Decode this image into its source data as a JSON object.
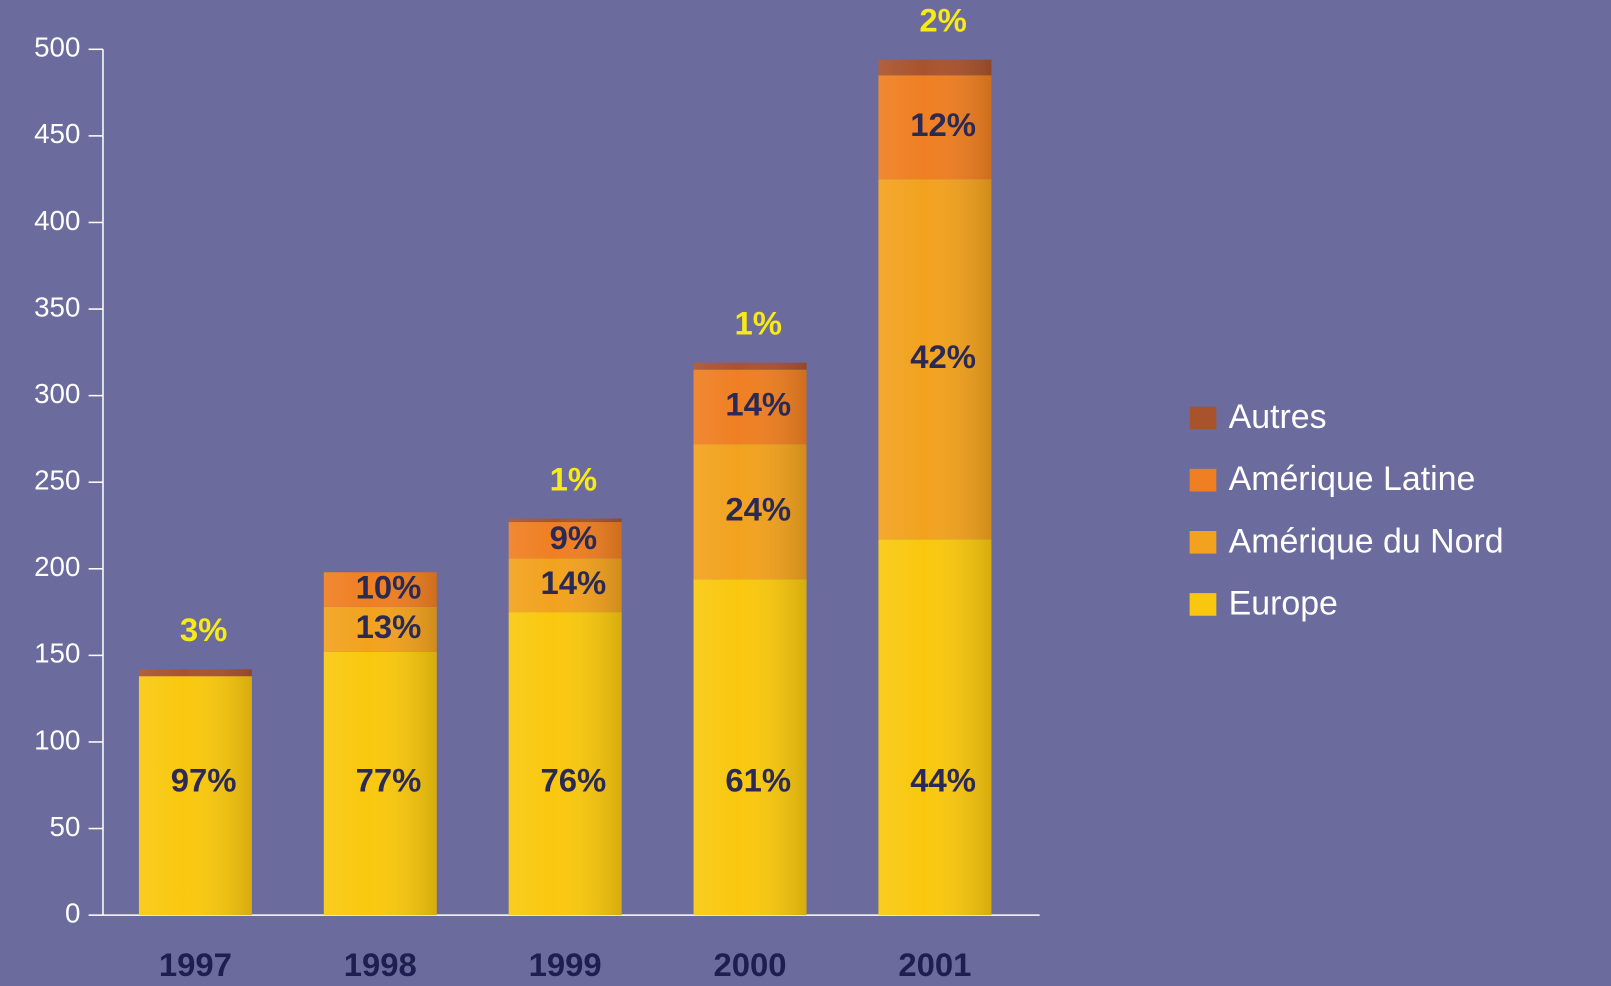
{
  "chart_data": {
    "type": "stacked_bar",
    "categories": [
      "1997",
      "1998",
      "1999",
      "2000",
      "2001"
    ],
    "series": [
      {
        "name": "Europe",
        "color": "#f9c80e",
        "values": [
          138,
          152,
          175,
          194,
          217
        ],
        "labels": [
          "97%",
          "77%",
          "76%",
          "61%",
          "44%"
        ]
      },
      {
        "name": "Amérique du Nord",
        "color": "#f2a21e",
        "values": [
          null,
          26,
          31,
          78,
          208
        ],
        "labels": [
          null,
          "13%",
          "14%",
          "24%",
          "42%"
        ]
      },
      {
        "name": "Amérique Latine",
        "color": "#ef7f22",
        "values": [
          null,
          20,
          21,
          43,
          60
        ],
        "labels": [
          null,
          "10%",
          "9%",
          "14%",
          "12%"
        ]
      },
      {
        "name": "Autres",
        "color": "#a9532d",
        "values": [
          4,
          null,
          2,
          4,
          9
        ],
        "labels": [
          "3%",
          null,
          "1%",
          "1%",
          "2%"
        ]
      }
    ],
    "ylim": [
      0,
      500
    ],
    "yticks": [
      0,
      50,
      100,
      150,
      200,
      250,
      300,
      350,
      400,
      450,
      500
    ],
    "legend": "right"
  }
}
